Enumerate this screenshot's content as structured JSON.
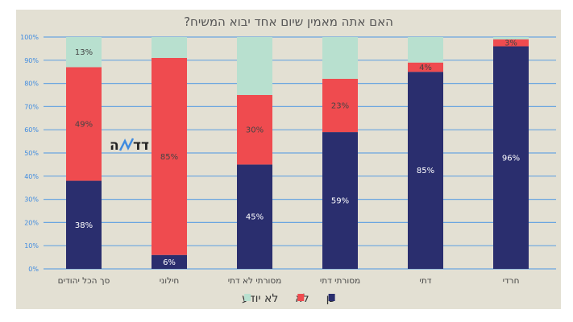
{
  "chart_data": {
    "type": "bar",
    "stacked": true,
    "title": "האם אתה מאמין שיום אחד יבוא המשיח?",
    "categories": [
      "סך הכל יהודים",
      "חילוני",
      "מסורתי לא דתי",
      "מסורתי דתי",
      "דתי",
      "חרדי"
    ],
    "series": [
      {
        "name": "כן",
        "color": "#2a2e6e",
        "values": [
          38,
          6,
          45,
          59,
          85,
          96
        ],
        "labels": [
          "38%",
          "6%",
          "45%",
          "59%",
          "85%",
          "96%"
        ]
      },
      {
        "name": "לא",
        "color": "#ef4b4f",
        "values": [
          49,
          85,
          30,
          23,
          4,
          3
        ],
        "labels": [
          "49%",
          "85%",
          "30%",
          "23%",
          "4%",
          "3%"
        ]
      },
      {
        "name": "לא יודע",
        "color": "#b8e0cf",
        "values": [
          13,
          9,
          25,
          18,
          11,
          1
        ],
        "labels": [
          "13%",
          "",
          "",
          "",
          "",
          ""
        ]
      }
    ],
    "ylim": [
      0,
      100
    ],
    "yticks": [
      "0%",
      "10%",
      "20%",
      "30%",
      "40%",
      "50%",
      "60%",
      "70%",
      "80%",
      "90%",
      "100%"
    ],
    "grid": true,
    "legend_placement": "bottom",
    "legend_order": [
      "לא יודע",
      "לא",
      "כן"
    ]
  },
  "logo": {
    "text": "המדד",
    "accent_color": "#3f8be0"
  },
  "colors": {
    "background": "#e3e0d3",
    "grid": "#6aa5e0"
  }
}
